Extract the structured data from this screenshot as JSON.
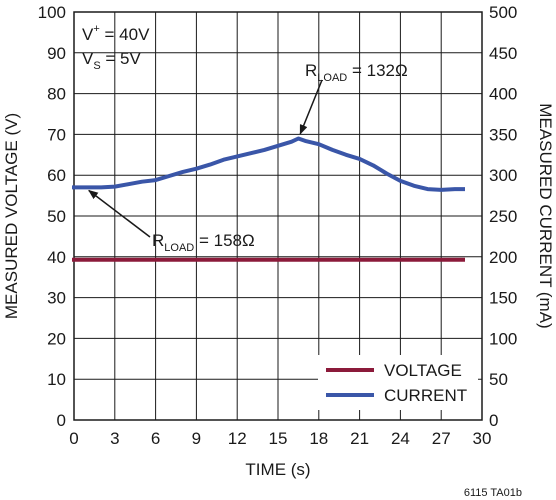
{
  "chart_data": {
    "type": "line",
    "xlabel": "TIME (s)",
    "ylabel": "MEASURED VOLTAGE (V)",
    "y2label": "MEASURED CURRENT (mA)",
    "xlim": [
      0,
      30
    ],
    "ylim": [
      0,
      100
    ],
    "y2lim": [
      0,
      500
    ],
    "xticks": [
      0,
      3,
      6,
      9,
      12,
      15,
      18,
      21,
      24,
      27,
      30
    ],
    "yticks": [
      0,
      10,
      20,
      30,
      40,
      50,
      60,
      70,
      80,
      90,
      100
    ],
    "y2ticks": [
      0,
      50,
      100,
      150,
      200,
      250,
      300,
      350,
      400,
      450,
      500
    ],
    "grid": true,
    "legend_position": "bottom-right",
    "series": [
      {
        "name": "VOLTAGE",
        "axis": "left",
        "color": "#8b1a3a",
        "x": [
          0,
          28.6
        ],
        "y": [
          39.3,
          39.3
        ]
      },
      {
        "name": "CURRENT",
        "axis": "right",
        "color": "#3a56a8",
        "x": [
          0,
          1,
          2,
          3,
          4,
          5,
          6,
          7,
          8,
          9,
          10,
          11,
          12,
          13,
          14,
          15,
          16,
          16.5,
          17,
          18,
          19,
          20,
          21,
          22,
          23,
          24,
          25,
          26,
          27,
          28,
          28.6
        ],
        "y": [
          285,
          285,
          285,
          286,
          289,
          292,
          294,
          299,
          304,
          308,
          313,
          319,
          323,
          327,
          331,
          336,
          341,
          345,
          342,
          338,
          331,
          325,
          320,
          312,
          302,
          293,
          287,
          283,
          282,
          283,
          283
        ]
      }
    ],
    "annotations": [
      {
        "text": "V",
        "sup": "+",
        "rest": " = 40V"
      },
      {
        "text": "V",
        "sub": "S",
        "rest": " = 5V"
      },
      {
        "text": "R",
        "sub": "LOAD",
        "rest": " = 132Ω",
        "points_to": [
          16.5,
          345
        ]
      },
      {
        "text": "R",
        "sub": "LOAD",
        "rest": " = 158Ω",
        "points_to": [
          0.8,
          285
        ]
      }
    ]
  },
  "footer": "6115 TA01b"
}
